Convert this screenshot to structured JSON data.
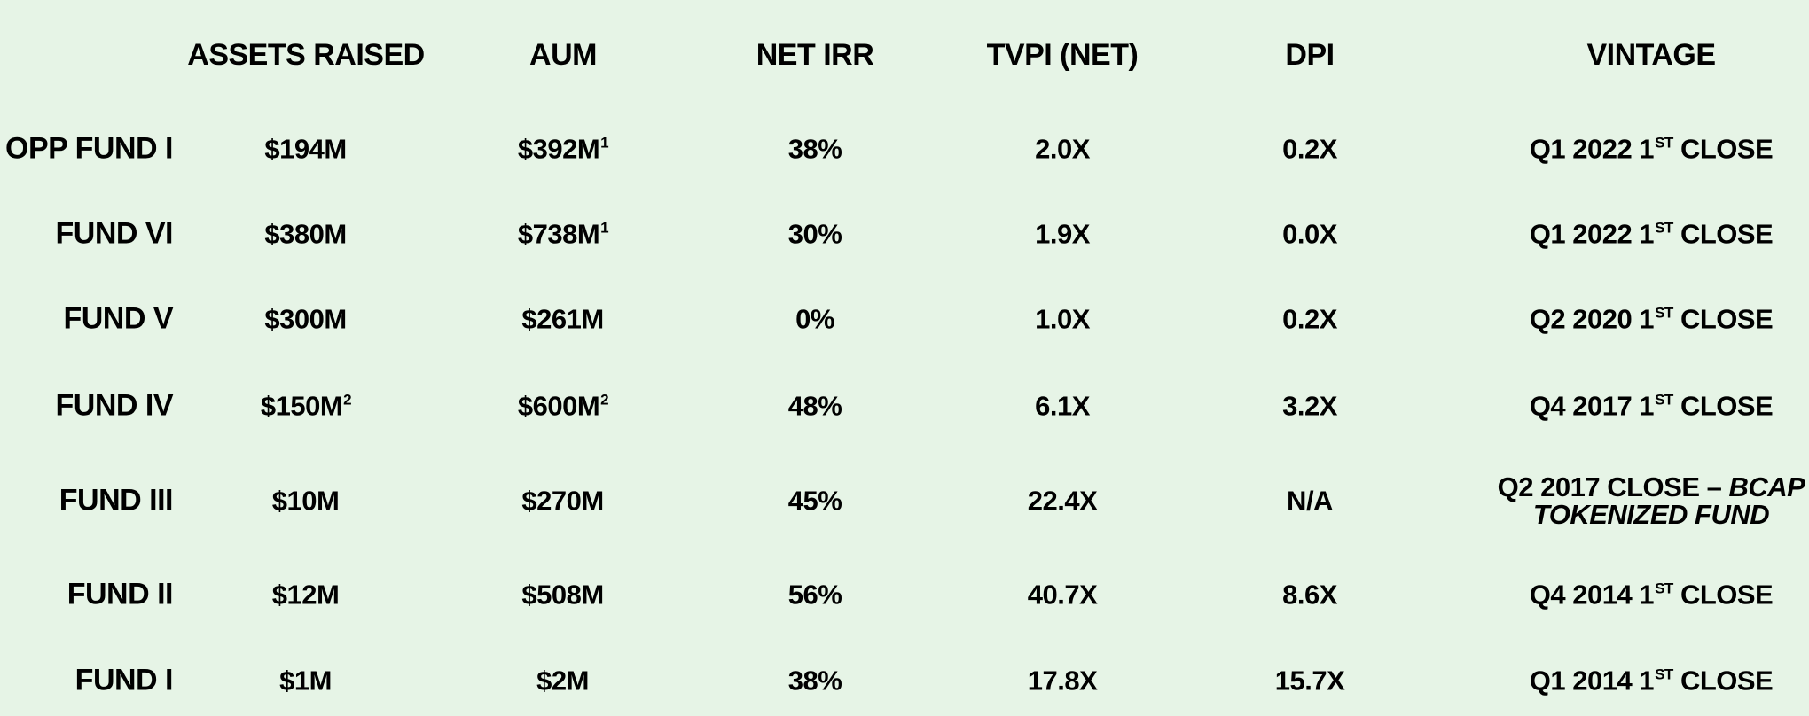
{
  "headers": [
    "ASSETS RAISED",
    "AUM",
    "NET IRR",
    "TVPI (NET)",
    "DPI",
    "VINTAGE"
  ],
  "rows": [
    {
      "fund": "OPP FUND I",
      "assets": "$194M",
      "assets_note": "",
      "aum": "$392M",
      "aum_note": "1",
      "irr": "38%",
      "tvpi": "2.0X",
      "dpi": "0.2X",
      "vintage": "Q1 2022 1",
      "vintage_sup": "ST",
      "vintage_end": " CLOSE"
    },
    {
      "fund": "FUND VI",
      "assets": "$380M",
      "assets_note": "",
      "aum": "$738M",
      "aum_note": "1",
      "irr": "30%",
      "tvpi": "1.9X",
      "dpi": "0.0X",
      "vintage": "Q1 2022 1",
      "vintage_sup": "ST",
      "vintage_end": " CLOSE"
    },
    {
      "fund": "FUND V",
      "assets": "$300M",
      "assets_note": "",
      "aum": "$261M",
      "aum_note": "",
      "irr": "0%",
      "tvpi": "1.0X",
      "dpi": "0.2X",
      "vintage": "Q2 2020 1",
      "vintage_sup": "ST",
      "vintage_end": " CLOSE"
    },
    {
      "fund": "FUND IV",
      "assets": "$150M",
      "assets_note": "2",
      "aum": "$600M",
      "aum_note": "2",
      "irr": "48%",
      "tvpi": "6.1X",
      "dpi": "3.2X",
      "vintage": "Q4 2017 1",
      "vintage_sup": "ST",
      "vintage_end": " CLOSE"
    },
    {
      "fund": "FUND III",
      "assets": "$10M",
      "assets_note": "",
      "aum": "$270M",
      "aum_note": "",
      "irr": "45%",
      "tvpi": "22.4X",
      "dpi": "N/A",
      "vintage": "Q2 2017 CLOSE – ",
      "vintage_italic_1": "BCAP",
      "vintage_italic_2": "TOKENIZED FUND"
    },
    {
      "fund": "FUND II",
      "assets": "$12M",
      "assets_note": "",
      "aum": "$508M",
      "aum_note": "",
      "irr": "56%",
      "tvpi": "40.7X",
      "dpi": "8.6X",
      "vintage": "Q4 2014 1",
      "vintage_sup": "ST",
      "vintage_end": " CLOSE"
    },
    {
      "fund": "FUND I",
      "assets": "$1M",
      "assets_note": "",
      "aum": "$2M",
      "aum_note": "",
      "irr": "38%",
      "tvpi": "17.8X",
      "dpi": "15.7X",
      "vintage": "Q1 2014 1",
      "vintage_sup": "ST",
      "vintage_end": " CLOSE"
    }
  ],
  "colors": {
    "background": "#e6f4e6",
    "text": "#000000"
  }
}
